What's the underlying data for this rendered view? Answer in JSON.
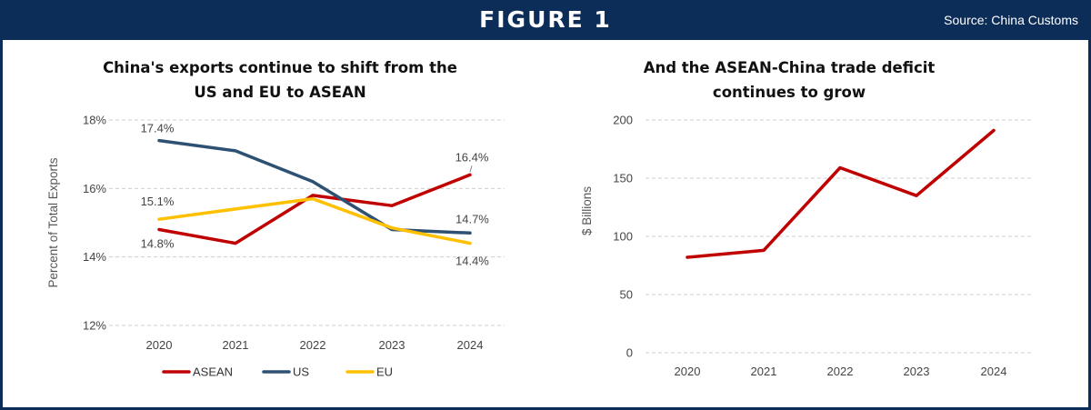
{
  "header": {
    "title": "FIGURE 1",
    "source": "Source: China Customs"
  },
  "colors": {
    "banner": "#0d2d59",
    "asean": "#c00000",
    "us": "#2e5173",
    "eu": "#ffc000"
  },
  "chart_data": [
    {
      "type": "line",
      "title_lines": [
        "China's exports continue to shift from the",
        "US and EU to ASEAN"
      ],
      "categories": [
        "2020",
        "2021",
        "2022",
        "2023",
        "2024"
      ],
      "ylabel": "Percent of Total Exports",
      "ylim": [
        12,
        18
      ],
      "yticks": [
        12,
        14,
        16,
        18
      ],
      "ytick_labels": [
        "12%",
        "14%",
        "16%",
        "18%"
      ],
      "grid": true,
      "legend": "bottom",
      "series": [
        {
          "name": "ASEAN",
          "color": "#c00000",
          "values": [
            14.8,
            14.4,
            15.8,
            15.5,
            16.4
          ]
        },
        {
          "name": "US",
          "color": "#2e5173",
          "values": [
            17.4,
            17.1,
            16.2,
            14.8,
            14.7
          ]
        },
        {
          "name": "EU",
          "color": "#ffc000",
          "values": [
            15.1,
            15.4,
            15.7,
            14.85,
            14.4
          ]
        }
      ],
      "annotations": [
        {
          "text": "17.4%",
          "series": "US",
          "category": "2020"
        },
        {
          "text": "15.1%",
          "series": "EU",
          "category": "2020"
        },
        {
          "text": "14.8%",
          "series": "ASEAN",
          "category": "2020"
        },
        {
          "text": "16.4%",
          "series": "ASEAN",
          "category": "2024"
        },
        {
          "text": "14.7%",
          "series": "US",
          "category": "2024"
        },
        {
          "text": "14.4%",
          "series": "EU",
          "category": "2024"
        }
      ]
    },
    {
      "type": "line",
      "title_lines": [
        "And the ASEAN-China trade deficit",
        "continues to grow"
      ],
      "categories": [
        "2020",
        "2021",
        "2022",
        "2023",
        "2024"
      ],
      "ylabel": "$ Billions",
      "ylim": [
        0,
        200
      ],
      "yticks": [
        0,
        50,
        100,
        150,
        200
      ],
      "ytick_labels": [
        "0",
        "50",
        "100",
        "150",
        "200"
      ],
      "grid": true,
      "series": [
        {
          "name": "Trade deficit",
          "color": "#c00000",
          "values": [
            82,
            88,
            159,
            135,
            191
          ]
        }
      ]
    }
  ]
}
